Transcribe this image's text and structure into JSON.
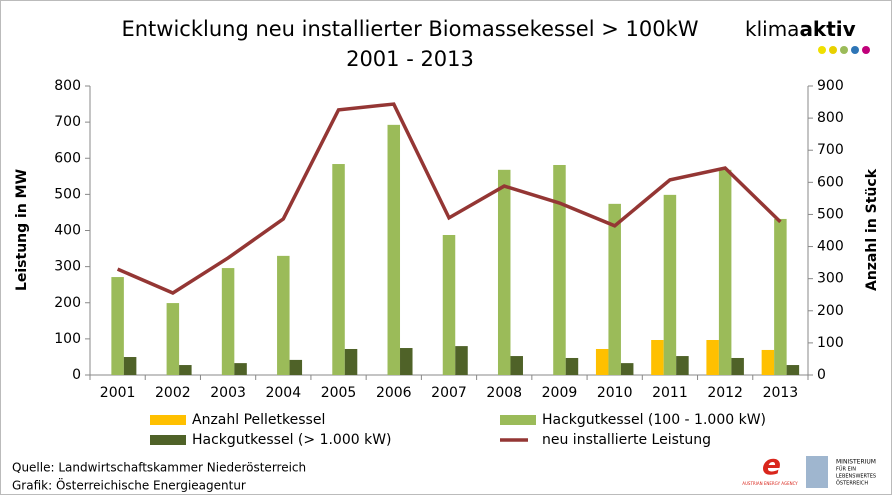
{
  "chart_data": {
    "type": "bar",
    "title": "Entwicklung neu installierter Biomassekessel > 100kW",
    "subtitle": "2001 - 2013",
    "y_label": "Leistung in MW",
    "y2_label": "Anzahl in Stück",
    "categories": [
      "2001",
      "2002",
      "2003",
      "2004",
      "2005",
      "2006",
      "2007",
      "2008",
      "2009",
      "2010",
      "2011",
      "2012",
      "2013"
    ],
    "ylim": [
      0,
      800
    ],
    "yticks": [
      0,
      100,
      200,
      300,
      400,
      500,
      600,
      700,
      800
    ],
    "y2lim": [
      0,
      900
    ],
    "y2ticks": [
      0,
      100,
      200,
      300,
      400,
      500,
      600,
      700,
      800,
      900
    ],
    "series": [
      {
        "name": "Anzahl Pelletkessel",
        "color": "#ffc000",
        "type": "bar",
        "axis": "y2",
        "values": [
          null,
          null,
          null,
          null,
          null,
          null,
          null,
          null,
          null,
          81,
          109,
          109,
          78
        ]
      },
      {
        "name": "Hackgutkessel (100 - 1.000 kW)",
        "color": "#9bbb59",
        "type": "bar",
        "axis": "y2",
        "values": [
          305,
          224,
          333,
          371,
          657,
          779,
          436,
          639,
          654,
          533,
          561,
          639,
          486
        ]
      },
      {
        "name": "Hackgutkessel (> 1.000 kW)",
        "color": "#4f6228",
        "type": "bar",
        "axis": "y2",
        "values": [
          56,
          31,
          37,
          47,
          81,
          84,
          90,
          59,
          53,
          37,
          59,
          53,
          31
        ]
      },
      {
        "name": "neu installierte Leistung",
        "color": "#943634",
        "type": "line",
        "values": [
          293,
          227,
          324,
          432,
          734,
          750,
          435,
          523,
          476,
          413,
          540,
          573,
          424
        ]
      }
    ],
    "source": "Quelle: Landwirtschaftskammer Niederösterreich",
    "credit": "Grafik: Österreichische  Energieagentur",
    "logo_main": [
      "klima",
      "aktiv"
    ],
    "logo_agency": "AUSTRIAN ENERGY AGENCY",
    "logo_ministry": [
      "MINISTERIUM",
      "FÜR EIN",
      "LEBENSWERTES",
      "ÖSTERREICH"
    ]
  }
}
